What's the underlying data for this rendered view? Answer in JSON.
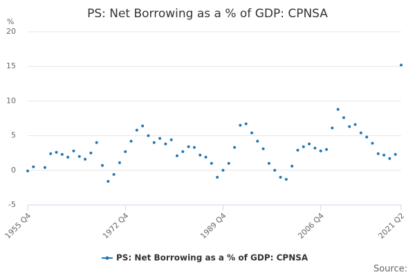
{
  "chart_data": {
    "type": "scatter",
    "title": "PS: Net Borrowing as a % of GDP: CPNSA",
    "y_label": "%",
    "source": "Source:",
    "categories": [
      "1955 Q4",
      null,
      null,
      null,
      null,
      null,
      null,
      null,
      null,
      null,
      null,
      null,
      null,
      null,
      null,
      null,
      null,
      "1972 Q4",
      null,
      null,
      null,
      null,
      null,
      null,
      null,
      null,
      null,
      null,
      null,
      null,
      null,
      null,
      null,
      null,
      "1989 Q4",
      null,
      null,
      null,
      null,
      null,
      null,
      null,
      null,
      null,
      null,
      null,
      null,
      null,
      null,
      null,
      null,
      "2006 Q4",
      null,
      null,
      null,
      null,
      null,
      null,
      null,
      null,
      null,
      null,
      null,
      null,
      null,
      "2021 Q2"
    ],
    "series": [
      {
        "name": "PS: Net Borrowing as a % of GDP: CPNSA",
        "color": "#1f77b4",
        "values": [
          -0.1,
          0.5,
          null,
          0.4,
          2.4,
          2.6,
          2.3,
          1.9,
          2.8,
          2.0,
          1.6,
          2.5,
          4.0,
          0.7,
          -1.6,
          -0.6,
          1.1,
          2.7,
          4.2,
          5.8,
          6.4,
          5.0,
          4.0,
          4.6,
          3.8,
          4.4,
          2.1,
          2.7,
          3.4,
          3.3,
          2.2,
          1.9,
          1.0,
          -1.0,
          0.0,
          1.0,
          3.3,
          6.5,
          6.7,
          5.4,
          4.2,
          3.1,
          1.0,
          0.0,
          -1.0,
          -1.3,
          0.6,
          2.9,
          3.4,
          3.8,
          3.2,
          2.8,
          3.0,
          6.1,
          8.8,
          7.6,
          6.3,
          6.6,
          5.4,
          4.8,
          3.9,
          2.4,
          2.2,
          1.7,
          2.3,
          15.2
        ]
      }
    ],
    "ylim": [
      -5,
      20
    ],
    "yticks": [
      -5,
      0,
      5,
      10,
      15,
      20
    ],
    "grid": true
  }
}
